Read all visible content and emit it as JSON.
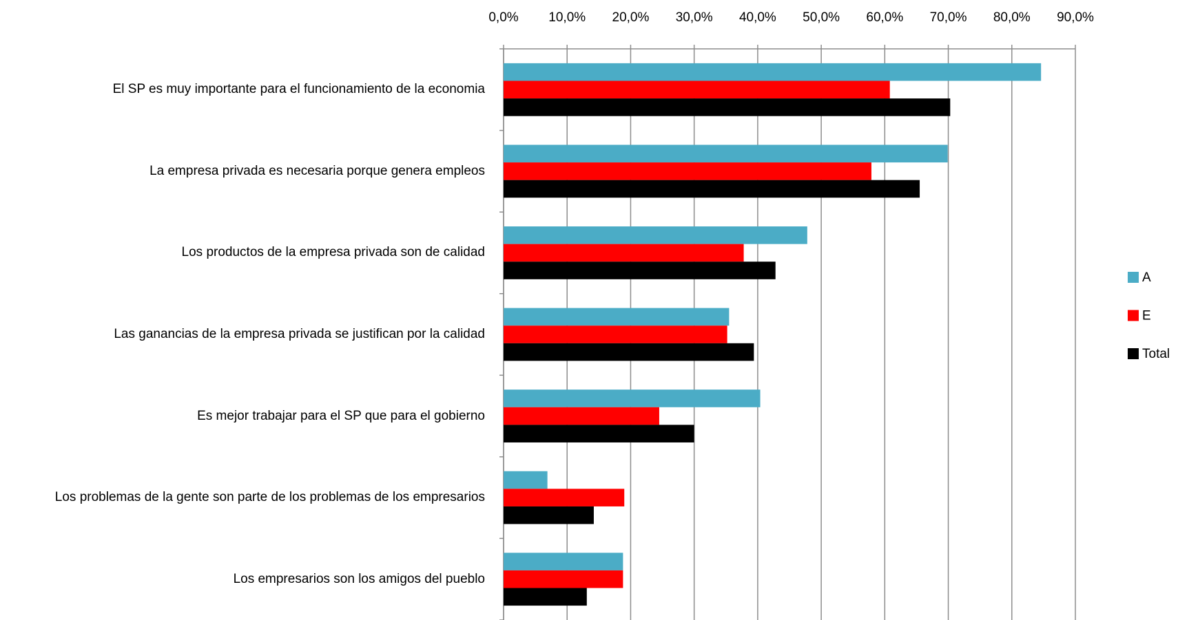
{
  "chart_data": {
    "type": "barh",
    "categories": [
      "El SP es muy importante  para el funcionamiento de la economia",
      "La empresa privada es necesaria porque genera empleos",
      "Los productos de la empresa privada son de calidad",
      "Las ganancias de la empresa privada se justifican por la calidad",
      "Es mejor trabajar para el SP que para el gobierno",
      "Los problemas de la gente son parte de los problemas de los empresarios",
      "Los empresarios son los amigos del pueblo"
    ],
    "series": [
      {
        "name": "A",
        "color": "#4bacc6",
        "values": [
          84.6,
          69.9,
          47.8,
          35.5,
          40.4,
          6.9,
          18.8
        ]
      },
      {
        "name": "E",
        "color": "#ff0000",
        "values": [
          60.8,
          57.9,
          37.8,
          35.2,
          24.5,
          19.0,
          18.8
        ]
      },
      {
        "name": "Total",
        "color": "#000000",
        "values": [
          70.3,
          65.5,
          42.8,
          39.4,
          30.0,
          14.2,
          13.1
        ]
      }
    ],
    "xlim": [
      0,
      90
    ],
    "xticks": [
      {
        "value": 0,
        "label": "0,0%"
      },
      {
        "value": 10,
        "label": "10,0%"
      },
      {
        "value": 20,
        "label": "20,0%"
      },
      {
        "value": 30,
        "label": "30,0%"
      },
      {
        "value": 40,
        "label": "40,0%"
      },
      {
        "value": 50,
        "label": "50,0%"
      },
      {
        "value": 60,
        "label": "60,0%"
      },
      {
        "value": 70,
        "label": "70,0%"
      },
      {
        "value": 80,
        "label": "80,0%"
      },
      {
        "value": 90,
        "label": "90,0%"
      }
    ],
    "grid": true,
    "legend": "right"
  }
}
